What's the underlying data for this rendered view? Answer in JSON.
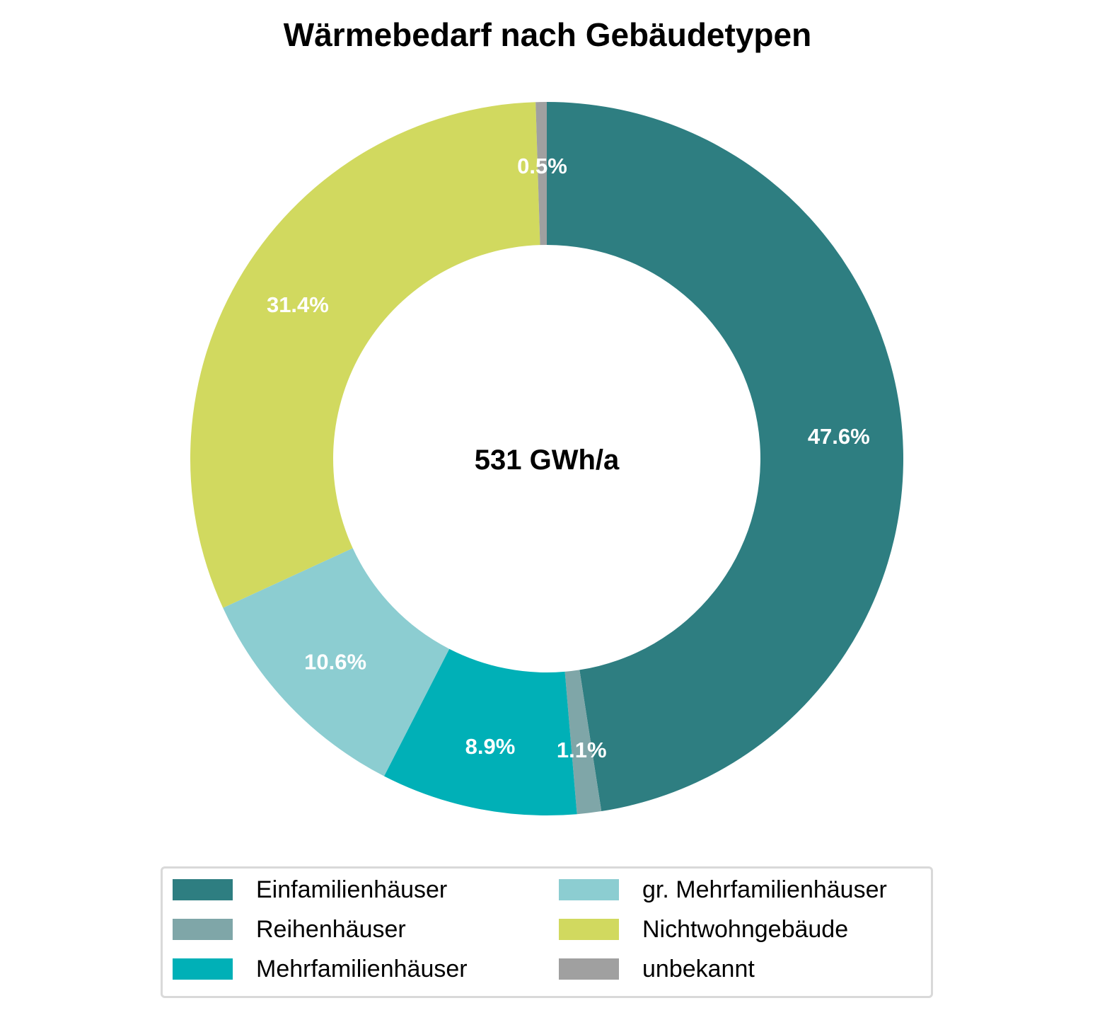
{
  "chart_data": {
    "type": "pie",
    "variant": "donut",
    "title": "Wärmebedarf nach Gebäudetypen",
    "center_label": "531 GWh/a",
    "unit": "%",
    "slices": [
      {
        "name": "Einfamilienhäuser",
        "value": 47.6,
        "label": "47.6%",
        "color": "#2e7e81"
      },
      {
        "name": "Reihenhäuser",
        "value": 1.1,
        "label": "1.1%",
        "color": "#7fa6a8"
      },
      {
        "name": "Mehrfamilienhäuser",
        "value": 8.9,
        "label": "8.9%",
        "color": "#00b0b7"
      },
      {
        "name": "gr. Mehrfamilienhäuser",
        "value": 10.6,
        "label": "10.6%",
        "color": "#8ccdd1"
      },
      {
        "name": "Nichtwohngebäude",
        "value": 31.4,
        "label": "31.4%",
        "color": "#d1d95f"
      },
      {
        "name": "unbekannt",
        "value": 0.5,
        "label": "0.5%",
        "color": "#a0a0a0"
      }
    ],
    "start_angle": "12 o'clock",
    "direction": "clockwise",
    "legend_position": "bottom",
    "legend_columns": 2
  }
}
